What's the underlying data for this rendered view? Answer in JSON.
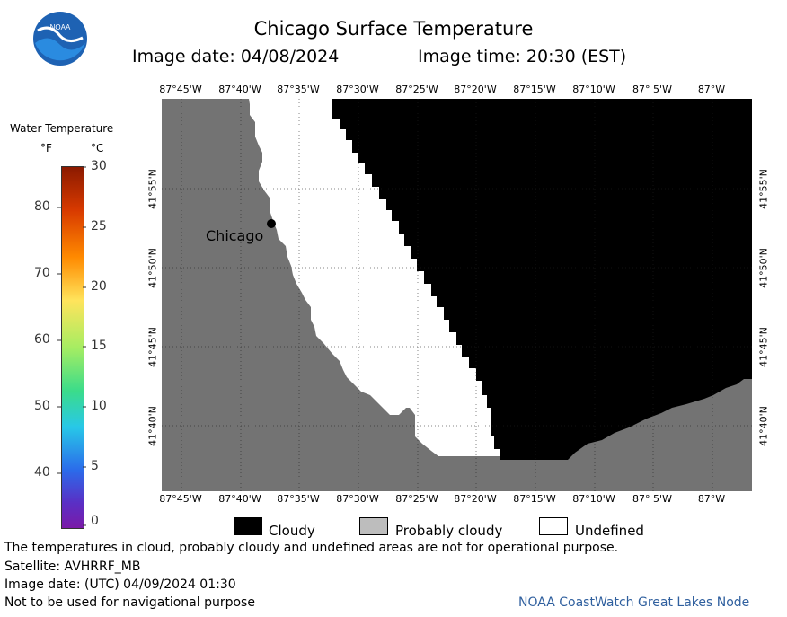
{
  "header": {
    "title": "Chicago Surface Temperature",
    "image_date": "Image date: 04/08/2024",
    "image_time": "Image time: 20:30 (EST)"
  },
  "scale": {
    "title": "Water Temperature",
    "f_label": "°F",
    "c_label": "°C",
    "f_ticks": [
      "80",
      "70",
      "60",
      "50",
      "40"
    ],
    "c_ticks": [
      "30",
      "25",
      "20",
      "15",
      "10",
      "5",
      "0"
    ]
  },
  "map": {
    "longitudes": [
      "87°45'W",
      "87°40'W",
      "87°35'W",
      "87°30'W",
      "87°25'W",
      "87°20'W",
      "87°15'W",
      "87°10'W",
      "87° 5'W",
      "87°W"
    ],
    "latitudes": [
      "41°55'N",
      "41°50'N",
      "41°45'N",
      "41°40'N"
    ],
    "city": "Chicago",
    "colors": {
      "land": "#737373",
      "cloudy": "#000000",
      "probably_cloudy": "#bdbdbd",
      "undefined": "#ffffff"
    }
  },
  "key": {
    "cloudy": "Cloudy",
    "probably_cloudy": "Probably cloudy",
    "undefined": "Undefined"
  },
  "footer": {
    "disclaimer": "The temperatures in cloud, probably cloudy and undefined areas are not for operational purpose.",
    "satellite": "Satellite: AVHRRF_MB",
    "utc_date": "Image date: (UTC) 04/09/2024  01:30",
    "nav_warning": "Not to be used for navigational purpose",
    "credit": "NOAA CoastWatch Great Lakes Node"
  }
}
